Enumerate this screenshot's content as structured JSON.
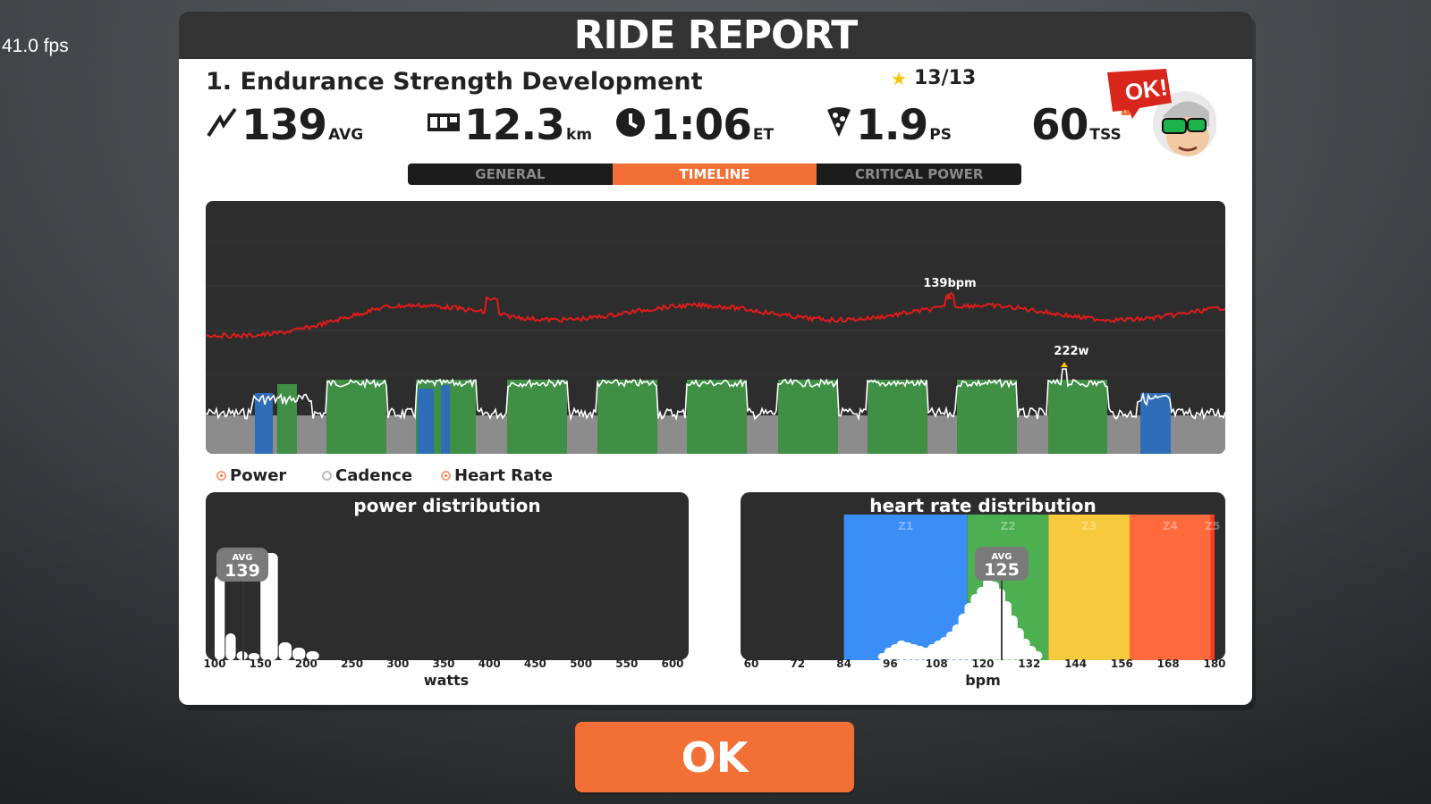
{
  "hud": {
    "fps": "41.0 fps"
  },
  "modal": {
    "title": "RIDE REPORT"
  },
  "workout": {
    "name": "1. Endurance Strength Development",
    "stars": "13/13"
  },
  "stats": [
    {
      "icon": "power-bolt-icon",
      "value": "139",
      "unit": "AVG"
    },
    {
      "icon": "odometer-icon",
      "value": "12.3",
      "unit": "km"
    },
    {
      "icon": "clock-icon",
      "value": "1:06",
      "unit": "ET"
    },
    {
      "icon": "pizza-slice-icon",
      "value": "1.9",
      "unit": "PS"
    }
  ],
  "tss": {
    "value": "60",
    "unit": "TSS",
    "help": "?"
  },
  "badge": {
    "text": "OK!"
  },
  "tabs": [
    {
      "label": "GENERAL",
      "active": false
    },
    {
      "label": "TIMELINE",
      "active": true
    },
    {
      "label": "CRITICAL POWER",
      "active": false
    }
  ],
  "timeline": {
    "hr_peak_label": "139bpm",
    "power_peak_label": "222w"
  },
  "legend": [
    {
      "label": "Power",
      "on": true
    },
    {
      "label": "Cadence",
      "on": false
    },
    {
      "label": "Heart Rate",
      "on": true
    }
  ],
  "power_distribution": {
    "title": "power distribution",
    "avg_label": "AVG",
    "avg_value": "139",
    "xlabel": "watts",
    "ticks": [
      "100",
      "150",
      "200",
      "250",
      "300",
      "350",
      "400",
      "450",
      "500",
      "550",
      "600"
    ]
  },
  "hr_distribution": {
    "title": "heart rate distribution",
    "avg_label": "AVG",
    "avg_value": "125",
    "xlabel": "bpm",
    "ticks": [
      "60",
      "72",
      "84",
      "96",
      "108",
      "120",
      "132",
      "144",
      "156",
      "168",
      "180"
    ],
    "zones": [
      {
        "label": "Z1",
        "from": 84,
        "to": 116,
        "color": "#3a8ef6"
      },
      {
        "label": "Z2",
        "from": 116,
        "to": 137,
        "color": "#4caf50"
      },
      {
        "label": "Z3",
        "from": 137,
        "to": 158,
        "color": "#f7c93c"
      },
      {
        "label": "Z4",
        "from": 158,
        "to": 179,
        "color": "#ff6a3d"
      },
      {
        "label": "Z5",
        "from": 179,
        "to": 180,
        "color": "#ff3b1e"
      }
    ]
  },
  "ok_button": {
    "label": "OK"
  }
}
